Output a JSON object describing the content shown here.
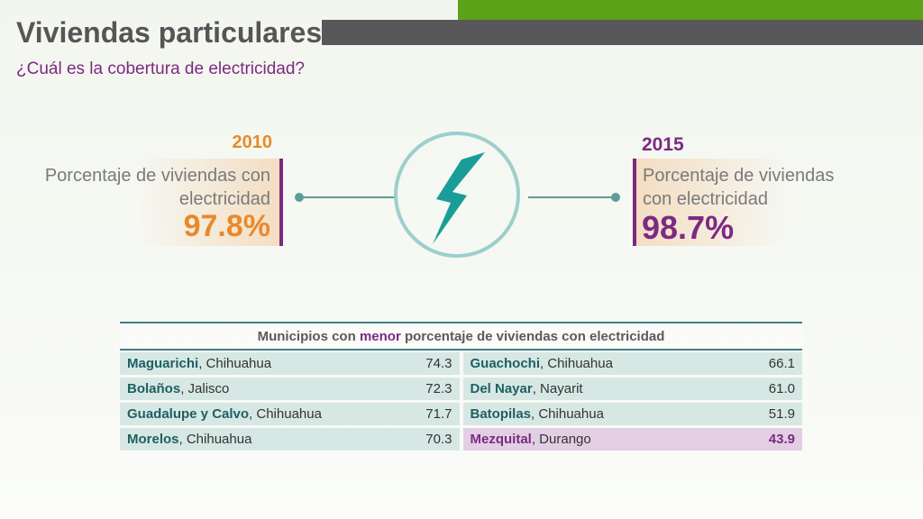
{
  "header": {
    "title": "Viviendas particulares",
    "subtitle": "¿Cuál es la cobertura de electricidad?"
  },
  "card_2010": {
    "year": "2010",
    "label": "Porcentaje de viviendas con electricidad",
    "value": "97.8%",
    "value_color": "#e8892c"
  },
  "card_2015": {
    "year": "2015",
    "label": "Porcentaje de viviendas con electricidad",
    "value": "98.7%",
    "value_color": "#7b2a82"
  },
  "icon": "lightning-bolt",
  "table": {
    "title_before": "Municipios con ",
    "title_emphasis": "menor",
    "title_after": " porcentaje de viviendas con electricidad",
    "left": [
      {
        "municipio": "Maguarichi",
        "estado": ", Chihuahua",
        "valor": "74.3"
      },
      {
        "municipio": "Bolaños",
        "estado": ", Jalisco",
        "valor": "72.3"
      },
      {
        "municipio": "Guadalupe y Calvo",
        "estado": ", Chihuahua",
        "valor": "71.7"
      },
      {
        "municipio": "Morelos",
        "estado": ", Chihuahua",
        "valor": "70.3"
      }
    ],
    "right": [
      {
        "municipio": "Guachochi",
        "estado": ", Chihuahua",
        "valor": "66.1"
      },
      {
        "municipio": "Del Nayar",
        "estado": ", Nayarit",
        "valor": "61.0"
      },
      {
        "municipio": "Batopilas",
        "estado": ", Chihuahua",
        "valor": "51.9"
      },
      {
        "municipio": "Mezquital",
        "estado": ", Durango",
        "valor": "43.9"
      }
    ]
  },
  "colors": {
    "accent_green": "#5aa318",
    "accent_purple": "#7b2a82",
    "accent_orange": "#e8892c",
    "teal": "#1a9d98"
  }
}
